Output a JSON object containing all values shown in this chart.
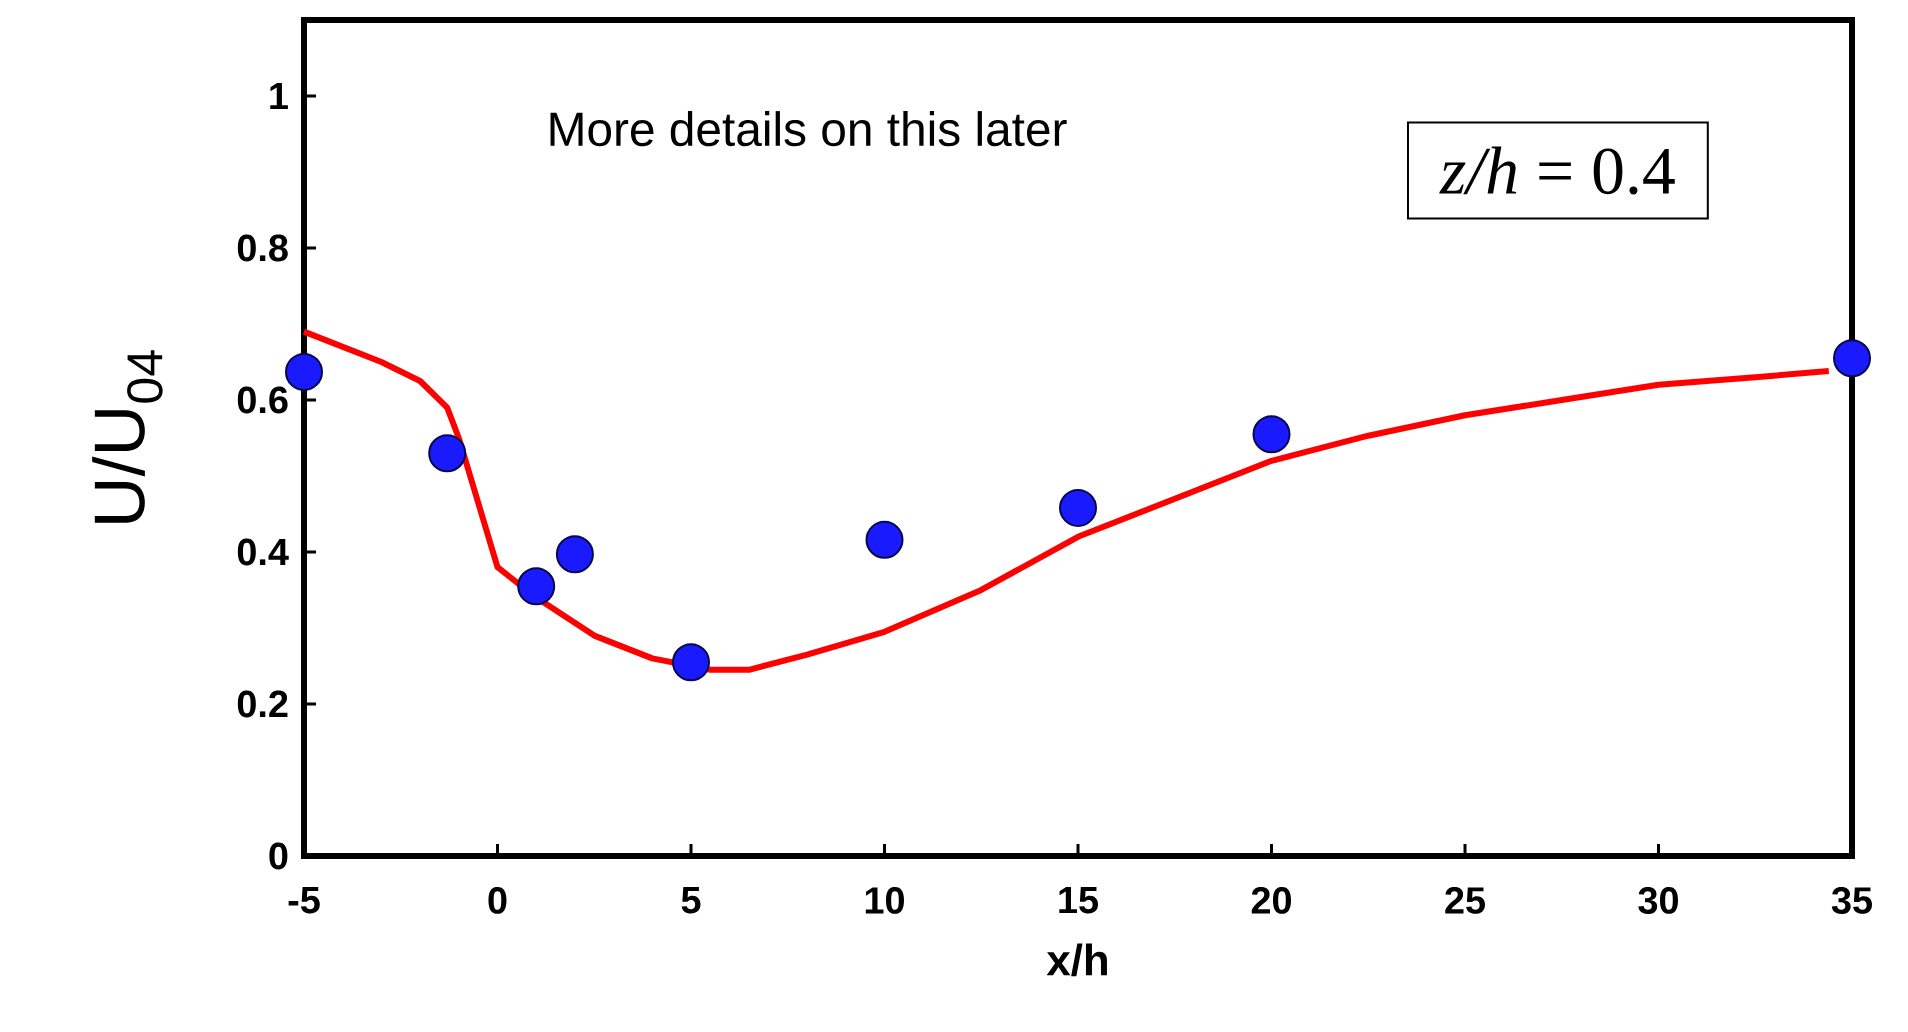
{
  "chart_data": {
    "type": "line",
    "xlabel": "x/h",
    "ylabel": "U/U$_{04}$",
    "xlim": [
      -5,
      35
    ],
    "ylim": [
      0,
      1.1
    ],
    "xticks": [
      -5,
      0,
      5,
      10,
      15,
      20,
      25,
      30,
      35
    ],
    "yticks": [
      0,
      0.2,
      0.4,
      0.6,
      0.8,
      1
    ],
    "annotations": [
      "More details on this later",
      "*z/h* = 0.4"
    ],
    "series": [
      {
        "color": "#ff0000",
        "marker": "none",
        "line_style": "solid",
        "x": [
          -5,
          -3,
          -2,
          -1.3,
          -1,
          0,
          1,
          2.5,
          4,
          5.5,
          6.5,
          8,
          10,
          12.5,
          15,
          17.5,
          20,
          22.5,
          25,
          27.5,
          30,
          32.5,
          34.4
        ],
        "values": [
          0.69,
          0.65,
          0.625,
          0.59,
          0.55,
          0.38,
          0.34,
          0.29,
          0.26,
          0.245,
          0.245,
          0.265,
          0.295,
          0.35,
          0.42,
          0.47,
          0.52,
          0.553,
          0.58,
          0.6,
          0.62,
          0.63,
          0.638
        ]
      },
      {
        "type": "scatter",
        "color": "#1a1aff",
        "marker": "circle",
        "x": [
          -5,
          -1.3,
          1,
          2,
          5,
          10,
          15,
          20,
          35
        ],
        "values": [
          0.637,
          0.53,
          0.355,
          0.397,
          0.255,
          0.416,
          0.458,
          0.555,
          0.655
        ]
      }
    ]
  }
}
